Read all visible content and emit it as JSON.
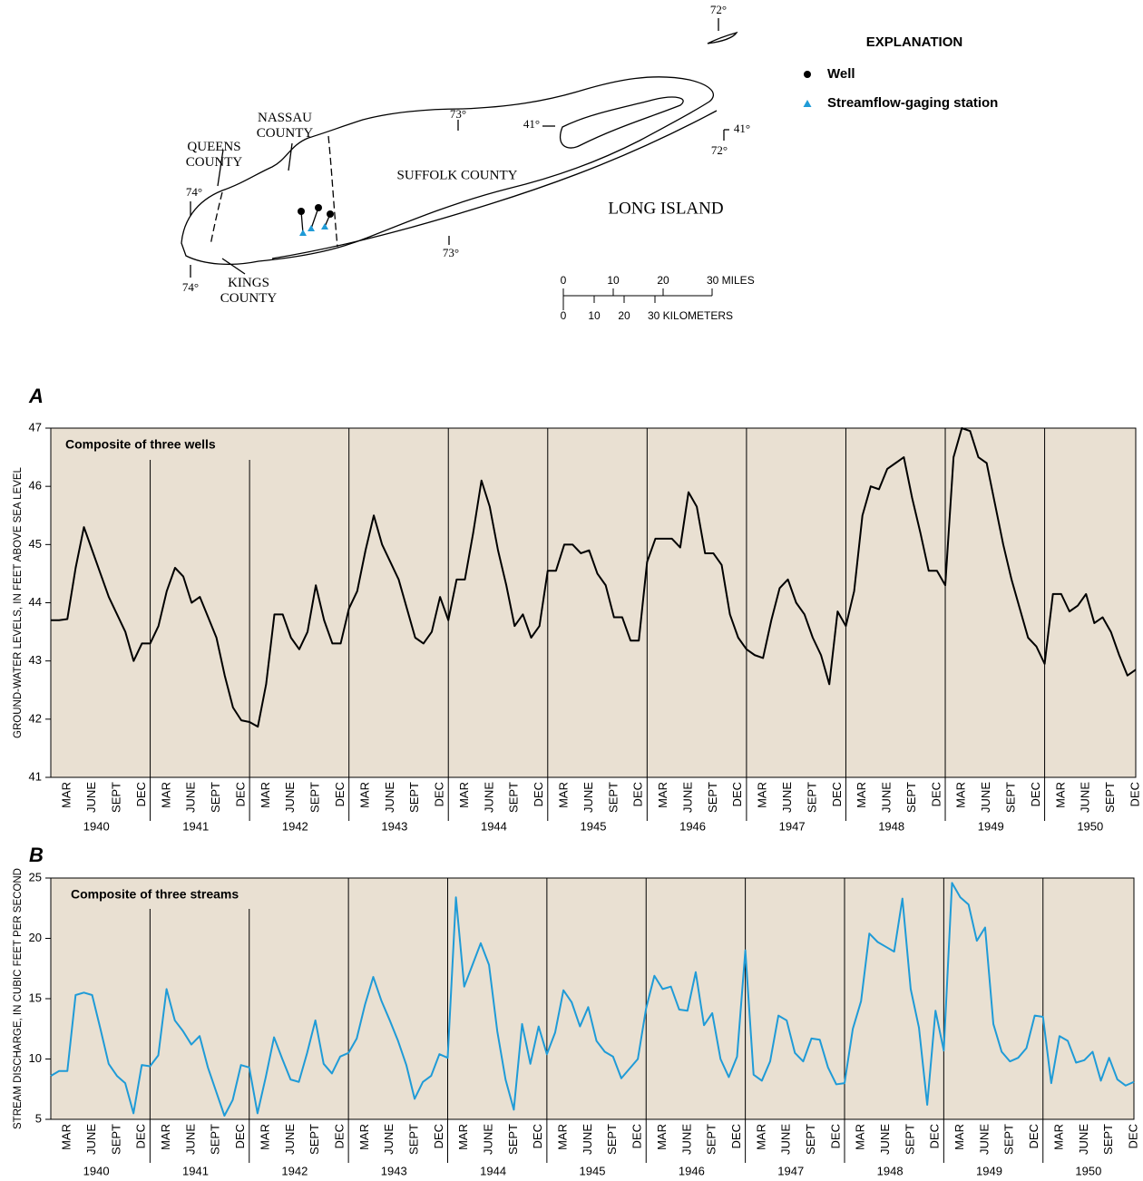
{
  "map": {
    "explanation": {
      "title": "EXPLANATION",
      "items": [
        "Well",
        "Streamflow-gaging station"
      ]
    },
    "counties": [
      "QUEENS COUNTY",
      "NASSAU COUNTY",
      "KINGS COUNTY",
      "SUFFOLK COUNTY"
    ],
    "island": "LONG ISLAND",
    "graticule_labels": [
      "72°",
      "72°",
      "74°",
      "74°",
      "73°",
      "73°",
      "41°",
      "41°"
    ],
    "scale_miles": [
      "0",
      "10",
      "20",
      "30 MILES"
    ],
    "scale_kilometers": [
      "0",
      "10",
      "20",
      "30 KILOMETERS"
    ]
  },
  "chart_data": [
    {
      "type": "line",
      "panel": "A",
      "annotation": "Composite of three wells",
      "y_label": "GROUND-WATER LEVELS, IN FEET ABOVE SEA LEVEL",
      "categories": [
        null,
        null,
        "MAR",
        null,
        null,
        "JUNE",
        null,
        null,
        "SEPT",
        null,
        null,
        "DEC",
        null,
        null,
        "MAR",
        null,
        null,
        "JUNE",
        null,
        null,
        "SEPT",
        null,
        null,
        "DEC",
        null,
        null,
        "MAR",
        null,
        null,
        "JUNE",
        null,
        null,
        "SEPT",
        null,
        null,
        "DEC",
        null,
        null,
        "MAR",
        null,
        null,
        "JUNE",
        null,
        null,
        "SEPT",
        null,
        null,
        "DEC",
        null,
        null,
        "MAR",
        null,
        null,
        "JUNE",
        null,
        null,
        "SEPT",
        null,
        null,
        "DEC",
        null,
        null,
        "MAR",
        null,
        null,
        "JUNE",
        null,
        null,
        "SEPT",
        null,
        null,
        "DEC",
        null,
        null,
        "MAR",
        null,
        null,
        "JUNE",
        null,
        null,
        "SEPT",
        null,
        null,
        "DEC",
        null,
        null,
        "MAR",
        null,
        null,
        "JUNE",
        null,
        null,
        "SEPT",
        null,
        null,
        "DEC",
        null,
        null,
        "MAR",
        null,
        null,
        "JUNE",
        null,
        null,
        "SEPT",
        null,
        null,
        "DEC",
        null,
        null,
        "MAR",
        null,
        null,
        "JUNE",
        null,
        null,
        "SEPT",
        null,
        null,
        "DEC",
        null,
        null,
        "MAR",
        null,
        null,
        "JUNE",
        null,
        null,
        "SEPT",
        null,
        null,
        "DEC"
      ],
      "years": [
        1940,
        1941,
        1942,
        1943,
        1944,
        1945,
        1946,
        1947,
        1948,
        1949,
        1950
      ],
      "series": [
        {
          "color": "#000000",
          "values": [
            43.7,
            43.7,
            43.72,
            44.6,
            45.3,
            44.9,
            44.5,
            44.1,
            43.8,
            43.5,
            43.0,
            43.3,
            43.3,
            43.6,
            44.2,
            44.6,
            44.45,
            44.0,
            44.1,
            43.75,
            43.4,
            42.75,
            42.2,
            41.98,
            41.95,
            41.87,
            42.6,
            43.8,
            43.8,
            43.4,
            43.2,
            43.5,
            44.3,
            43.7,
            43.3,
            43.3,
            43.9,
            44.2,
            44.9,
            45.5,
            45.0,
            44.7,
            44.4,
            43.9,
            43.4,
            43.3,
            43.5,
            44.1,
            43.7,
            44.4,
            44.4,
            45.2,
            46.1,
            45.65,
            44.9,
            44.3,
            43.6,
            43.8,
            43.4,
            43.6,
            44.55,
            44.55,
            45.0,
            45.0,
            44.85,
            44.9,
            44.5,
            44.3,
            43.75,
            43.75,
            43.35,
            43.35,
            44.7,
            45.1,
            45.1,
            45.1,
            44.95,
            45.9,
            45.65,
            44.85,
            44.85,
            44.65,
            43.8,
            43.4,
            43.2,
            43.1,
            43.05,
            43.7,
            44.25,
            44.4,
            44.0,
            43.8,
            43.4,
            43.1,
            42.6,
            43.85,
            43.6,
            44.2,
            45.5,
            46.0,
            45.95,
            46.3,
            46.4,
            46.5,
            45.8,
            45.2,
            44.55,
            44.55,
            44.3,
            46.5,
            47.0,
            46.95,
            46.5,
            46.4,
            45.7,
            45.0,
            44.4,
            43.9,
            43.4,
            43.25,
            42.95,
            44.15,
            44.15,
            43.85,
            43.95,
            44.15,
            43.65,
            43.75,
            43.5,
            43.1,
            42.75,
            42.85
          ]
        }
      ],
      "ylim": [
        41,
        47
      ],
      "yticks": [
        41,
        42,
        43,
        44,
        45,
        46,
        47
      ]
    },
    {
      "type": "line",
      "panel": "B",
      "annotation": "Composite of three streams",
      "y_label": "STREAM DISCHARGE, IN CUBIC FEET PER SECOND",
      "categories": [
        null,
        null,
        "MAR",
        null,
        null,
        "JUNE",
        null,
        null,
        "SEPT",
        null,
        null,
        "DEC",
        null,
        null,
        "MAR",
        null,
        null,
        "JUNE",
        null,
        null,
        "SEPT",
        null,
        null,
        "DEC",
        null,
        null,
        "MAR",
        null,
        null,
        "JUNE",
        null,
        null,
        "SEPT",
        null,
        null,
        "DEC",
        null,
        null,
        "MAR",
        null,
        null,
        "JUNE",
        null,
        null,
        "SEPT",
        null,
        null,
        "DEC",
        null,
        null,
        "MAR",
        null,
        null,
        "JUNE",
        null,
        null,
        "SEPT",
        null,
        null,
        "DEC",
        null,
        null,
        "MAR",
        null,
        null,
        "JUNE",
        null,
        null,
        "SEPT",
        null,
        null,
        "DEC",
        null,
        null,
        "MAR",
        null,
        null,
        "JUNE",
        null,
        null,
        "SEPT",
        null,
        null,
        "DEC",
        null,
        null,
        "MAR",
        null,
        null,
        "JUNE",
        null,
        null,
        "SEPT",
        null,
        null,
        "DEC",
        null,
        null,
        "MAR",
        null,
        null,
        "JUNE",
        null,
        null,
        "SEPT",
        null,
        null,
        "DEC",
        null,
        null,
        "MAR",
        null,
        null,
        "JUNE",
        null,
        null,
        "SEPT",
        null,
        null,
        "DEC",
        null,
        null,
        "MAR",
        null,
        null,
        "JUNE",
        null,
        null,
        "SEPT",
        null,
        null,
        "DEC"
      ],
      "years": [
        1940,
        1941,
        1942,
        1943,
        1944,
        1945,
        1946,
        1947,
        1948,
        1949,
        1950
      ],
      "series": [
        {
          "color": "#1f9bd7",
          "values": [
            8.6,
            9.0,
            9.0,
            15.3,
            15.5,
            15.3,
            12.5,
            9.6,
            8.6,
            8.0,
            5.5,
            9.5,
            9.4,
            10.3,
            15.8,
            13.2,
            12.3,
            11.2,
            11.9,
            9.3,
            7.3,
            5.3,
            6.6,
            9.5,
            9.3,
            5.5,
            8.5,
            11.8,
            10.0,
            8.3,
            8.1,
            10.5,
            13.2,
            9.6,
            8.8,
            10.2,
            10.5,
            11.7,
            14.5,
            16.8,
            14.8,
            13.2,
            11.5,
            9.5,
            6.7,
            8.1,
            8.6,
            10.4,
            10.1,
            23.4,
            16.0,
            17.8,
            19.6,
            17.8,
            12.3,
            8.3,
            5.8,
            12.9,
            9.6,
            12.7,
            10.4,
            12.2,
            15.7,
            14.7,
            12.7,
            14.3,
            11.5,
            10.6,
            10.2,
            8.4,
            9.2,
            10.0,
            14.2,
            16.9,
            15.8,
            16.0,
            14.1,
            14.0,
            17.2,
            12.8,
            13.8,
            10.0,
            8.5,
            10.2,
            19.0,
            8.7,
            8.2,
            9.8,
            13.6,
            13.2,
            10.5,
            9.8,
            11.7,
            11.6,
            9.3,
            7.9,
            8.0,
            12.5,
            14.8,
            20.4,
            19.7,
            19.3,
            18.9,
            23.3,
            15.8,
            12.6,
            6.2,
            14.0,
            10.7,
            24.6,
            23.4,
            22.8,
            19.8,
            20.9,
            12.9,
            10.6,
            9.8,
            10.1,
            10.9,
            13.6,
            13.5,
            8.0,
            11.9,
            11.5,
            9.7,
            9.9,
            10.6,
            8.2,
            10.1,
            8.3,
            7.8,
            8.1
          ]
        }
      ],
      "ylim": [
        5,
        25
      ],
      "yticks": [
        5,
        10,
        15,
        20,
        25
      ]
    }
  ]
}
